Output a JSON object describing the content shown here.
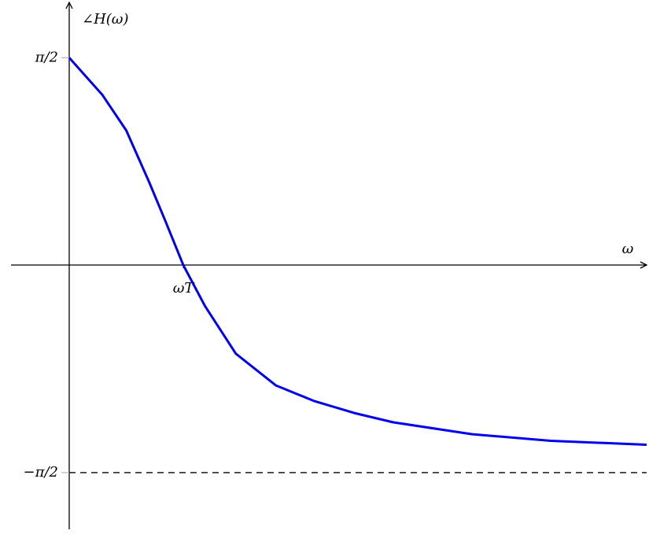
{
  "chart_data": {
    "type": "line",
    "xlabel": "ω",
    "ylabel": "∠H(ω)",
    "x": [
      0,
      0.29,
      0.5,
      0.7,
      0.84,
      1,
      1.19,
      1.46,
      1.81,
      2.15,
      2.5,
      2.84,
      3.53,
      4.22,
      5.06
    ],
    "values": [
      1.5708,
      1.29,
      1.02,
      0.63,
      0.34,
      0,
      -0.31,
      -0.67,
      -0.91,
      -1.03,
      -1.12,
      -1.19,
      -1.28,
      -1.33,
      -1.36
    ],
    "color": "#0000ee",
    "xlim": [
      -0.51,
      5.06
    ],
    "ylim": [
      -2.0,
      1.99
    ],
    "xticks": [
      {
        "value": 1,
        "label": "ωT"
      }
    ],
    "yticks": [
      {
        "value": 1.5708,
        "label": "π/2"
      },
      {
        "value": -1.5708,
        "label": "−π/2"
      }
    ],
    "asymptote": -1.5708
  }
}
